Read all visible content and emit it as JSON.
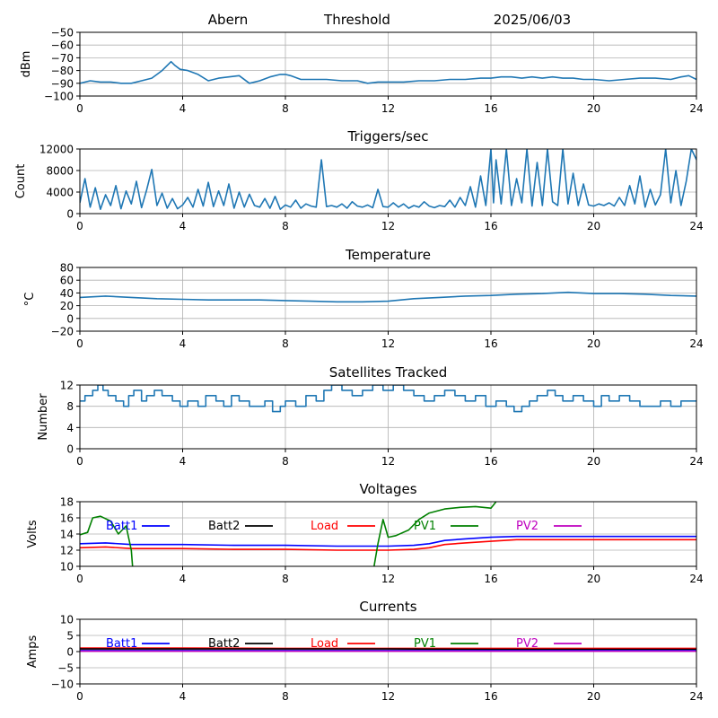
{
  "header": {
    "site": "Abern",
    "label": "Threshold",
    "date": "2025/06/03"
  },
  "chart_data": [
    {
      "type": "line",
      "id": "rssi",
      "title": "",
      "ylabel": "dBm",
      "xlim": [
        0,
        24
      ],
      "ylim": [
        -100,
        -50
      ],
      "yticks": [
        -100,
        -90,
        -80,
        -70,
        -60,
        -50
      ],
      "xticks": [
        0,
        4,
        8,
        12,
        16,
        20,
        24
      ],
      "grid": true,
      "series": [
        {
          "color": "#1f77b4",
          "x": [
            0,
            0.4,
            0.8,
            1.2,
            1.6,
            2.0,
            2.4,
            2.8,
            3.0,
            3.2,
            3.4,
            3.55,
            3.7,
            3.9,
            4.2,
            4.6,
            5.0,
            5.4,
            5.8,
            6.2,
            6.6,
            7.0,
            7.4,
            7.8,
            8.0,
            8.2,
            8.6,
            9.0,
            9.6,
            10.2,
            10.8,
            11.2,
            11.6,
            12.0,
            12.6,
            13.2,
            13.8,
            14.4,
            15.0,
            15.6,
            16.0,
            16.4,
            16.8,
            17.2,
            17.6,
            18.0,
            18.4,
            18.8,
            19.2,
            19.6,
            20.0,
            20.6,
            21.2,
            21.8,
            22.4,
            23.0,
            23.4,
            23.7,
            24.0
          ],
          "y": [
            -90,
            -88,
            -89,
            -89,
            -90,
            -90,
            -88,
            -86,
            -83,
            -80,
            -76,
            -73,
            -76,
            -79,
            -80,
            -83,
            -88,
            -86,
            -85,
            -84,
            -90,
            -88,
            -85,
            -83,
            -83,
            -84,
            -87,
            -87,
            -87,
            -88,
            -88,
            -90,
            -89,
            -89,
            -89,
            -88,
            -88,
            -87,
            -87,
            -86,
            -86,
            -85,
            -85,
            -86,
            -85,
            -86,
            -85,
            -86,
            -86,
            -87,
            -87,
            -88,
            -87,
            -86,
            -86,
            -87,
            -85,
            -84,
            -87
          ]
        }
      ]
    },
    {
      "type": "line",
      "id": "triggers",
      "title": "Triggers/sec",
      "ylabel": "Count",
      "xlim": [
        0,
        24
      ],
      "ylim": [
        0,
        12000
      ],
      "yticks": [
        0,
        4000,
        8000,
        12000
      ],
      "xticks": [
        0,
        4,
        8,
        12,
        16,
        20,
        24
      ],
      "grid": true,
      "series": [
        {
          "color": "#1f77b4",
          "x": [
            0,
            0.2,
            0.4,
            0.6,
            0.8,
            1.0,
            1.2,
            1.4,
            1.6,
            1.8,
            2.0,
            2.2,
            2.4,
            2.6,
            2.8,
            3.0,
            3.2,
            3.4,
            3.6,
            3.8,
            4.0,
            4.2,
            4.4,
            4.6,
            4.8,
            5.0,
            5.2,
            5.4,
            5.6,
            5.8,
            6.0,
            6.2,
            6.4,
            6.6,
            6.8,
            7.0,
            7.2,
            7.4,
            7.6,
            7.8,
            8.0,
            8.2,
            8.4,
            8.6,
            8.8,
            9.0,
            9.2,
            9.4,
            9.6,
            9.8,
            10.0,
            10.2,
            10.4,
            10.6,
            10.8,
            11.0,
            11.2,
            11.4,
            11.6,
            11.8,
            12.0,
            12.2,
            12.4,
            12.6,
            12.8,
            13.0,
            13.2,
            13.4,
            13.6,
            13.8,
            14.0,
            14.2,
            14.4,
            14.6,
            14.8,
            15.0,
            15.2,
            15.4,
            15.6,
            15.8,
            16.0,
            16.1,
            16.2,
            16.4,
            16.6,
            16.8,
            17.0,
            17.2,
            17.4,
            17.6,
            17.8,
            18.0,
            18.2,
            18.4,
            18.6,
            18.8,
            19.0,
            19.2,
            19.4,
            19.6,
            19.8,
            20.0,
            20.2,
            20.4,
            20.6,
            20.8,
            21.0,
            21.2,
            21.4,
            21.6,
            21.8,
            22.0,
            22.2,
            22.4,
            22.6,
            22.8,
            23.0,
            23.2,
            23.4,
            23.6,
            23.8,
            24.0
          ],
          "y": [
            2000,
            6500,
            1200,
            4800,
            800,
            3500,
            1500,
            5200,
            900,
            4200,
            1800,
            6000,
            1100,
            4400,
            8200,
            1500,
            3800,
            1000,
            2800,
            900,
            1600,
            3000,
            1200,
            4500,
            1400,
            5800,
            1300,
            4200,
            1500,
            5500,
            1000,
            4000,
            1200,
            3600,
            1500,
            1200,
            2800,
            1000,
            3200,
            800,
            1600,
            1200,
            2500,
            1000,
            1800,
            1400,
            1200,
            10000,
            1300,
            1500,
            1200,
            1800,
            1000,
            2200,
            1400,
            1200,
            1600,
            1100,
            4500,
            1300,
            1200,
            2000,
            1200,
            1800,
            1000,
            1500,
            1200,
            2200,
            1400,
            1100,
            1500,
            1300,
            2500,
            1200,
            3000,
            1500,
            5000,
            1200,
            7000,
            1500,
            12000,
            2000,
            10000,
            1800,
            12000,
            1500,
            6500,
            2000,
            12000,
            1400,
            9500,
            1500,
            12000,
            2200,
            1500,
            12000,
            1800,
            7500,
            1500,
            5500,
            1600,
            1400,
            1800,
            1500,
            2000,
            1400,
            3000,
            1500,
            5200,
            1800,
            7000,
            1200,
            4500,
            1600,
            3500,
            12000,
            2000,
            8000,
            1500,
            6000,
            12000,
            10000
          ]
        }
      ]
    },
    {
      "type": "line",
      "id": "temperature",
      "title": "Temperature",
      "ylabel": "°C",
      "xlim": [
        0,
        24
      ],
      "ylim": [
        -20,
        80
      ],
      "yticks": [
        -20,
        0,
        20,
        40,
        60,
        80
      ],
      "xticks": [
        0,
        4,
        8,
        12,
        16,
        20,
        24
      ],
      "grid": true,
      "series": [
        {
          "color": "#1f77b4",
          "x": [
            0,
            1,
            2,
            3,
            4,
            5,
            6,
            7,
            8,
            9,
            10,
            11,
            12,
            13,
            14,
            15,
            16,
            17,
            18,
            19,
            20,
            21,
            22,
            23,
            24
          ],
          "y": [
            33,
            35,
            33,
            31,
            30,
            29,
            29,
            29,
            28,
            27,
            26,
            26,
            27,
            31,
            33,
            35,
            36,
            38,
            39,
            41,
            39,
            39,
            38,
            36,
            35
          ]
        }
      ]
    },
    {
      "type": "line",
      "id": "satellites",
      "title": "Satellites Tracked",
      "ylabel": "Number",
      "xlim": [
        0,
        24
      ],
      "ylim": [
        0,
        12
      ],
      "yticks": [
        0,
        4,
        8,
        12
      ],
      "xticks": [
        0,
        4,
        8,
        12,
        16,
        20,
        24
      ],
      "grid": true,
      "step": true,
      "series": [
        {
          "color": "#1f77b4",
          "x": [
            0,
            0.2,
            0.5,
            0.7,
            0.9,
            1.1,
            1.4,
            1.7,
            1.9,
            2.1,
            2.4,
            2.6,
            2.9,
            3.2,
            3.6,
            3.9,
            4.2,
            4.6,
            4.9,
            5.3,
            5.6,
            5.9,
            6.2,
            6.6,
            6.9,
            7.2,
            7.5,
            7.8,
            8.0,
            8.4,
            8.8,
            9.2,
            9.5,
            9.8,
            10.2,
            10.6,
            11.0,
            11.4,
            11.8,
            12.2,
            12.6,
            13.0,
            13.4,
            13.8,
            14.2,
            14.6,
            15.0,
            15.4,
            15.8,
            16.2,
            16.6,
            16.9,
            17.2,
            17.5,
            17.8,
            18.2,
            18.5,
            18.8,
            19.2,
            19.6,
            20.0,
            20.3,
            20.6,
            21.0,
            21.4,
            21.8,
            22.2,
            22.6,
            23.0,
            23.4,
            23.8,
            24.0
          ],
          "y": [
            9,
            10,
            11,
            12,
            11,
            10,
            9,
            8,
            10,
            11,
            9,
            10,
            11,
            10,
            9,
            8,
            9,
            8,
            10,
            9,
            8,
            10,
            9,
            8,
            8,
            9,
            7,
            8,
            9,
            8,
            10,
            9,
            11,
            12,
            11,
            10,
            11,
            12,
            11,
            12,
            11,
            10,
            9,
            10,
            11,
            10,
            9,
            10,
            8,
            9,
            8,
            7,
            8,
            9,
            10,
            11,
            10,
            9,
            10,
            9,
            8,
            10,
            9,
            10,
            9,
            8,
            8,
            9,
            8,
            9,
            9,
            9
          ]
        }
      ]
    },
    {
      "type": "line",
      "id": "voltages",
      "title": "Voltages",
      "ylabel": "Volts",
      "xlim": [
        0,
        24
      ],
      "ylim": [
        10,
        18
      ],
      "yticks": [
        10,
        12,
        14,
        16,
        18
      ],
      "xticks": [
        0,
        4,
        8,
        12,
        16,
        20,
        24
      ],
      "grid": true,
      "legend": [
        {
          "name": "Batt1",
          "color": "#0000ff"
        },
        {
          "name": "Batt2",
          "color": "#000000"
        },
        {
          "name": "Load",
          "color": "#ff0000"
        },
        {
          "name": "PV1",
          "color": "#008000"
        },
        {
          "name": "PV2",
          "color": "#bf00bf"
        }
      ],
      "series": [
        {
          "color": "#0000ff",
          "x": [
            0,
            1,
            2,
            4,
            6,
            8,
            10,
            12,
            13,
            13.6,
            14.2,
            15,
            16,
            17,
            18,
            20,
            22,
            24
          ],
          "y": [
            12.8,
            12.9,
            12.7,
            12.7,
            12.6,
            12.6,
            12.5,
            12.5,
            12.6,
            12.8,
            13.2,
            13.4,
            13.6,
            13.7,
            13.7,
            13.7,
            13.7,
            13.7
          ]
        },
        {
          "color": "#ff0000",
          "x": [
            0,
            1,
            2,
            4,
            6,
            8,
            10,
            12,
            13,
            13.6,
            14.2,
            15,
            16,
            17,
            18,
            20,
            22,
            24
          ],
          "y": [
            12.3,
            12.4,
            12.2,
            12.2,
            12.1,
            12.1,
            12.0,
            12.0,
            12.1,
            12.3,
            12.7,
            12.9,
            13.1,
            13.3,
            13.3,
            13.3,
            13.3,
            13.3
          ]
        },
        {
          "color": "#008000",
          "x": [
            0,
            0.3,
            0.5,
            0.8,
            1.2,
            1.5,
            1.8,
            2.0,
            2.05
          ],
          "y": [
            13.9,
            14.2,
            16.0,
            16.2,
            15.6,
            14.0,
            15.0,
            12.0,
            10.0
          ]
        },
        {
          "color": "#008000",
          "x": [
            11.45,
            11.6,
            11.8,
            12.0,
            12.3,
            12.8,
            13.2,
            13.6,
            14.2,
            14.8,
            15.4,
            16.0,
            16.1,
            16.2
          ],
          "y": [
            10.0,
            12.8,
            15.8,
            13.6,
            13.8,
            14.5,
            15.8,
            16.6,
            17.1,
            17.3,
            17.4,
            17.2,
            17.6,
            18.0
          ]
        }
      ]
    },
    {
      "type": "line",
      "id": "currents",
      "title": "Currents",
      "ylabel": "Amps",
      "xlim": [
        0,
        24
      ],
      "ylim": [
        -10,
        10
      ],
      "yticks": [
        -10,
        -5,
        0,
        5,
        10
      ],
      "xticks": [
        0,
        4,
        8,
        12,
        16,
        20,
        24
      ],
      "grid": true,
      "legend": [
        {
          "name": "Batt1",
          "color": "#0000ff"
        },
        {
          "name": "Batt2",
          "color": "#000000"
        },
        {
          "name": "Load",
          "color": "#ff0000"
        },
        {
          "name": "PV1",
          "color": "#008000"
        },
        {
          "name": "PV2",
          "color": "#bf00bf"
        }
      ],
      "series": [
        {
          "color": "#ff0000",
          "x": [
            0,
            4,
            8,
            12,
            16,
            20,
            24
          ],
          "y": [
            1.1,
            1.1,
            1.0,
            1.0,
            1.0,
            1.0,
            1.0
          ]
        },
        {
          "color": "#000000",
          "x": [
            0,
            4,
            8,
            12,
            16,
            20,
            24
          ],
          "y": [
            0.8,
            0.8,
            0.8,
            0.8,
            0.7,
            0.7,
            0.7
          ]
        },
        {
          "color": "#0000ff",
          "x": [
            0,
            4,
            8,
            12,
            16,
            20,
            24
          ],
          "y": [
            0.3,
            0.3,
            0.3,
            0.3,
            0.3,
            0.3,
            0.3
          ]
        },
        {
          "color": "#bf00bf",
          "x": [
            0,
            4,
            8,
            12,
            16,
            20,
            24
          ],
          "y": [
            0.1,
            0.1,
            0.1,
            0.1,
            0.1,
            0.1,
            0.1
          ]
        }
      ]
    }
  ]
}
